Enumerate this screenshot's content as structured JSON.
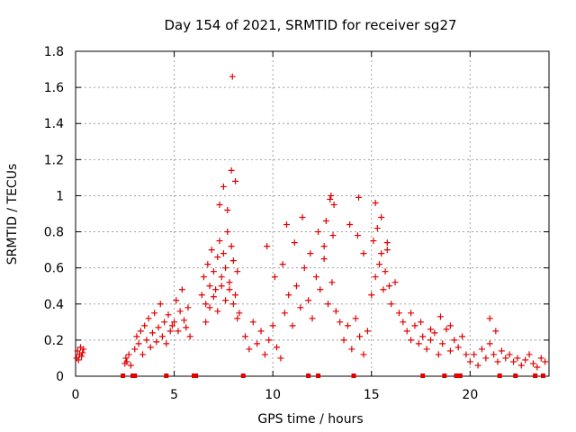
{
  "chart_data": {
    "type": "scatter",
    "title": "Day 154 of 2021, SRMTID for receiver sg27",
    "xlabel": "GPS time / hours",
    "ylabel": "SRMTID / TECUs",
    "xlim": [
      0,
      24
    ],
    "ylim": [
      0,
      1.8
    ],
    "xticks": [
      0,
      5,
      10,
      15,
      20
    ],
    "xtick_labels": [
      "0",
      "5",
      "10",
      "15",
      "20"
    ],
    "yticks": [
      0,
      0.2,
      0.4,
      0.6,
      0.8,
      1.0,
      1.2,
      1.4,
      1.6,
      1.8
    ],
    "ytick_labels": [
      "0",
      "0.2",
      "0.4",
      "0.6",
      "0.8",
      "1",
      "1.2",
      "1.4",
      "1.6",
      "1.8"
    ],
    "grid": true,
    "marker": "plus",
    "color": "#e00000",
    "series": [
      {
        "name": "SRMTID",
        "x": [
          0.05,
          0.1,
          0.15,
          0.2,
          0.25,
          0.3,
          0.35,
          0.4,
          2.5,
          2.55,
          2.6,
          2.7,
          2.8,
          3.0,
          3.1,
          3.2,
          3.3,
          3.4,
          3.5,
          3.6,
          3.7,
          3.8,
          3.9,
          4.0,
          4.1,
          4.2,
          4.3,
          4.4,
          4.5,
          4.6,
          4.7,
          4.8,
          4.9,
          5.0,
          5.1,
          5.2,
          5.3,
          5.4,
          5.5,
          5.6,
          5.7,
          5.8,
          6.4,
          6.5,
          6.6,
          6.7,
          6.8,
          6.9,
          7.0,
          7.1,
          7.2,
          7.3,
          7.4,
          7.5,
          7.6,
          7.7,
          7.8,
          7.9,
          8.0,
          8.1,
          8.2,
          8.3,
          6.6,
          6.8,
          7.0,
          7.2,
          7.4,
          7.6,
          7.8,
          8.0,
          8.2,
          7.3,
          7.5,
          7.7,
          7.9,
          7.95,
          8.1,
          8.6,
          8.8,
          9.0,
          9.2,
          9.4,
          9.6,
          9.8,
          10.0,
          10.2,
          10.4,
          9.7,
          10.1,
          10.5,
          10.6,
          10.8,
          11.0,
          11.2,
          11.4,
          11.6,
          11.8,
          12.0,
          12.2,
          12.4,
          12.6,
          12.8,
          13.0,
          13.2,
          13.4,
          10.7,
          11.1,
          11.5,
          11.9,
          12.3,
          12.7,
          12.9,
          13.1,
          12.6,
          12.95,
          13.05,
          13.6,
          13.8,
          14.0,
          14.2,
          14.4,
          14.6,
          14.8,
          13.9,
          14.3,
          14.35,
          14.6,
          15.0,
          15.2,
          15.4,
          15.6,
          15.8,
          16.0,
          16.2,
          16.4,
          15.1,
          15.3,
          15.5,
          15.7,
          15.9,
          15.2,
          15.5,
          15.8,
          16.6,
          16.8,
          17.0,
          17.2,
          17.4,
          17.6,
          17.8,
          18.0,
          18.2,
          18.4,
          18.6,
          18.8,
          19.0,
          19.2,
          19.4,
          19.6,
          19.8,
          17.0,
          17.5,
          18.0,
          18.5,
          19.0,
          20.0,
          20.2,
          20.4,
          20.6,
          20.8,
          21.0,
          21.2,
          21.4,
          21.6,
          21.8,
          21.0,
          21.3,
          22.0,
          22.2,
          22.4,
          22.6,
          22.8,
          23.0,
          23.2,
          23.4,
          23.6,
          23.8
        ],
        "y": [
          0.1,
          0.14,
          0.09,
          0.12,
          0.16,
          0.11,
          0.13,
          0.15,
          0.07,
          0.1,
          0.08,
          0.12,
          0.06,
          0.15,
          0.22,
          0.18,
          0.25,
          0.12,
          0.28,
          0.2,
          0.32,
          0.16,
          0.24,
          0.35,
          0.19,
          0.27,
          0.4,
          0.22,
          0.3,
          0.18,
          0.34,
          0.25,
          0.28,
          0.3,
          0.42,
          0.25,
          0.36,
          0.48,
          0.31,
          0.27,
          0.38,
          0.22,
          0.45,
          0.55,
          0.4,
          0.62,
          0.5,
          0.7,
          0.58,
          0.48,
          0.66,
          0.75,
          0.55,
          0.68,
          0.6,
          0.8,
          0.52,
          0.72,
          0.64,
          0.45,
          0.58,
          0.35,
          0.3,
          0.38,
          0.44,
          0.36,
          0.5,
          0.42,
          0.48,
          0.4,
          0.32,
          0.95,
          1.05,
          0.92,
          1.14,
          1.66,
          1.08,
          0.22,
          0.15,
          0.3,
          0.18,
          0.25,
          0.12,
          0.2,
          0.28,
          0.16,
          0.1,
          0.72,
          0.55,
          0.62,
          0.35,
          0.45,
          0.28,
          0.5,
          0.38,
          0.6,
          0.42,
          0.32,
          0.55,
          0.48,
          0.65,
          0.4,
          0.52,
          0.36,
          0.3,
          0.84,
          0.74,
          0.88,
          0.68,
          0.8,
          0.86,
          0.98,
          0.95,
          0.72,
          1.0,
          0.78,
          0.2,
          0.28,
          0.15,
          0.32,
          0.22,
          0.12,
          0.25,
          0.84,
          0.78,
          0.99,
          0.68,
          0.45,
          0.55,
          0.62,
          0.48,
          0.7,
          0.4,
          0.52,
          0.35,
          0.75,
          0.82,
          0.68,
          0.58,
          0.5,
          0.96,
          0.88,
          0.74,
          0.3,
          0.25,
          0.2,
          0.28,
          0.18,
          0.22,
          0.15,
          0.2,
          0.24,
          0.12,
          0.18,
          0.26,
          0.14,
          0.2,
          0.16,
          0.22,
          0.12,
          0.35,
          0.3,
          0.26,
          0.33,
          0.28,
          0.08,
          0.12,
          0.06,
          0.15,
          0.1,
          0.18,
          0.12,
          0.08,
          0.14,
          0.1,
          0.32,
          0.25,
          0.12,
          0.08,
          0.1,
          0.06,
          0.09,
          0.12,
          0.07,
          0.05,
          0.1,
          0.08
        ]
      }
    ],
    "gap_markers_x": [
      2.4,
      2.9,
      3.0,
      4.6,
      6.0,
      6.1,
      8.5,
      11.8,
      12.3,
      14.1,
      17.6,
      18.7,
      19.3,
      19.5,
      21.5,
      22.3,
      23.3,
      23.7
    ]
  }
}
